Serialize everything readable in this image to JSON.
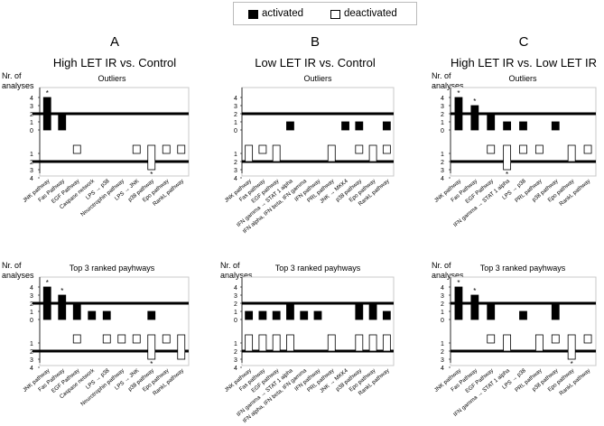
{
  "legend": {
    "activated": "activated",
    "deactivated": "deactivated"
  },
  "columns": [
    {
      "letter": "A",
      "title": "High LET IR vs. Control"
    },
    {
      "letter": "B",
      "title": "Low LET IR vs. Control"
    },
    {
      "letter": "C",
      "title": "High LET IR vs. Low LET IR"
    }
  ],
  "colors": {
    "activated": "#000000",
    "deactivated": "#ffffff",
    "band": "#000000"
  },
  "chart_data": [
    {
      "type": "bar",
      "title": "Outliers",
      "ylabel": "Nr. of analyses",
      "yticks_top": [
        "4",
        "3",
        "2",
        "1",
        "0"
      ],
      "yticks_bottom": [
        "1",
        "2",
        "3",
        "4"
      ],
      "categories": [
        "JNK pathway",
        "Fas Pathway",
        "EGF Pathway",
        "Caspase network",
        "LPS → p38",
        "Neurotrophin pathway",
        "LPS → JNK",
        "p38 pathway",
        "Epo pathway",
        "RankL pathway"
      ],
      "series": [
        {
          "name": "activated",
          "values": [
            4,
            2,
            0,
            0,
            0,
            0,
            0,
            0,
            0,
            0
          ]
        },
        {
          "name": "deactivated",
          "values": [
            0,
            0,
            1,
            0,
            0,
            0,
            1,
            3,
            1,
            1
          ]
        }
      ],
      "stars": [
        {
          "category": 0,
          "side": "top"
        },
        {
          "category": 7,
          "side": "bottom"
        }
      ]
    },
    {
      "type": "bar",
      "title": "Outliers",
      "ylabel": "",
      "yticks_top": [
        "4",
        "3",
        "2",
        "1",
        "0"
      ],
      "yticks_bottom": [
        "1",
        "2",
        "3",
        "4"
      ],
      "categories": [
        "JNK pathway",
        "Fas pathway",
        "EGF pathway",
        "IFN gamma → STAT 1 alpha",
        "IFN alpha, IFN beta, IFN gamma",
        "IFN pathway",
        "PRL pathway",
        "JNK → MKK4",
        "p38 pathway",
        "Epo pathway",
        "RankL pathway"
      ],
      "series": [
        {
          "name": "activated",
          "values": [
            0,
            0,
            0,
            1,
            0,
            0,
            0,
            1,
            1,
            0,
            1
          ]
        },
        {
          "name": "deactivated",
          "values": [
            2,
            1,
            2,
            0,
            0,
            0,
            2,
            0,
            1,
            2,
            1
          ]
        }
      ],
      "stars": []
    },
    {
      "type": "bar",
      "title": "Outliers",
      "ylabel": "Nr. of analyses",
      "yticks_top": [
        "4",
        "3",
        "2",
        "1",
        "0"
      ],
      "yticks_bottom": [
        "1",
        "2",
        "3",
        "4"
      ],
      "categories": [
        "JNK pathway",
        "Fas Pathway",
        "EGF Pathway",
        "IFN gamma → STAT 1 alpha",
        "LPS → p38",
        "PRL pathway",
        "p38 pathway",
        "Epo pathway",
        "RankL pathway"
      ],
      "series": [
        {
          "name": "activated",
          "values": [
            4,
            3,
            2,
            1,
            1,
            0,
            1,
            0,
            0
          ]
        },
        {
          "name": "deactivated",
          "values": [
            0,
            0,
            1,
            3,
            1,
            1,
            0,
            2,
            1
          ]
        }
      ],
      "stars": [
        {
          "category": 0,
          "side": "top"
        },
        {
          "category": 1,
          "side": "top"
        },
        {
          "category": 3,
          "side": "bottom"
        }
      ]
    },
    {
      "type": "bar",
      "title": "Top 3 ranked payhways",
      "ylabel": "Nr. of analyses",
      "yticks_top": [
        "4",
        "3",
        "2",
        "1",
        "0"
      ],
      "yticks_bottom": [
        "1",
        "2",
        "3",
        "4"
      ],
      "categories": [
        "JNK pathway",
        "Fas Pathway",
        "EGF Pathway",
        "Caspase network",
        "LPS → p38",
        "Neurotrophin pathway",
        "LPS → JNK",
        "p38 pathway",
        "Epo pathway",
        "RankL pathway"
      ],
      "series": [
        {
          "name": "activated",
          "values": [
            4,
            3,
            2,
            1,
            1,
            0,
            0,
            1,
            0,
            0
          ]
        },
        {
          "name": "deactivated",
          "values": [
            0,
            0,
            1,
            0,
            1,
            1,
            1,
            3,
            1,
            3
          ]
        }
      ],
      "stars": [
        {
          "category": 0,
          "side": "top"
        },
        {
          "category": 1,
          "side": "top"
        },
        {
          "category": 7,
          "side": "bottom"
        }
      ]
    },
    {
      "type": "bar",
      "title": "Top 3 ranked payhways",
      "ylabel": "Nr. of analyses",
      "yticks_top": [
        "4",
        "3",
        "2",
        "1",
        "0"
      ],
      "yticks_bottom": [
        "1",
        "2",
        "3",
        "4"
      ],
      "categories": [
        "JNK pathway",
        "Fas pathway",
        "EGF pathway",
        "IFN gamma → STAT 1 alpha",
        "IFN alpha, IFN beta, IFN gamma",
        "IFN pathway",
        "PRL pathway",
        "JNK → MKK4",
        "p38 pathway",
        "Epo pathway",
        "RankL pathway"
      ],
      "series": [
        {
          "name": "activated",
          "values": [
            1,
            1,
            1,
            2,
            1,
            1,
            0,
            0,
            2,
            2,
            1
          ]
        },
        {
          "name": "deactivated",
          "values": [
            2,
            2,
            2,
            2,
            0,
            0,
            2,
            0,
            2,
            2,
            2
          ]
        }
      ],
      "stars": []
    },
    {
      "type": "bar",
      "title": "Top 3 ranked payhways",
      "ylabel": "Nr. of analyses",
      "yticks_top": [
        "4",
        "3",
        "2",
        "1",
        "0"
      ],
      "yticks_bottom": [
        "1",
        "2",
        "3",
        "4"
      ],
      "categories": [
        "JNK pathway",
        "Fas Pathway",
        "EGF Pathway",
        "IFN gamma → STAT 1 alpha",
        "LPS → p38",
        "PRL pathway",
        "p38 pathway",
        "Epo pathway",
        "RankL pathway"
      ],
      "series": [
        {
          "name": "activated",
          "values": [
            4,
            3,
            2,
            0,
            1,
            0,
            2,
            0,
            0
          ]
        },
        {
          "name": "deactivated",
          "values": [
            0,
            0,
            1,
            2,
            0,
            2,
            1,
            3,
            1
          ]
        }
      ],
      "stars": [
        {
          "category": 0,
          "side": "top"
        },
        {
          "category": 1,
          "side": "top"
        },
        {
          "category": 7,
          "side": "bottom"
        }
      ]
    }
  ]
}
